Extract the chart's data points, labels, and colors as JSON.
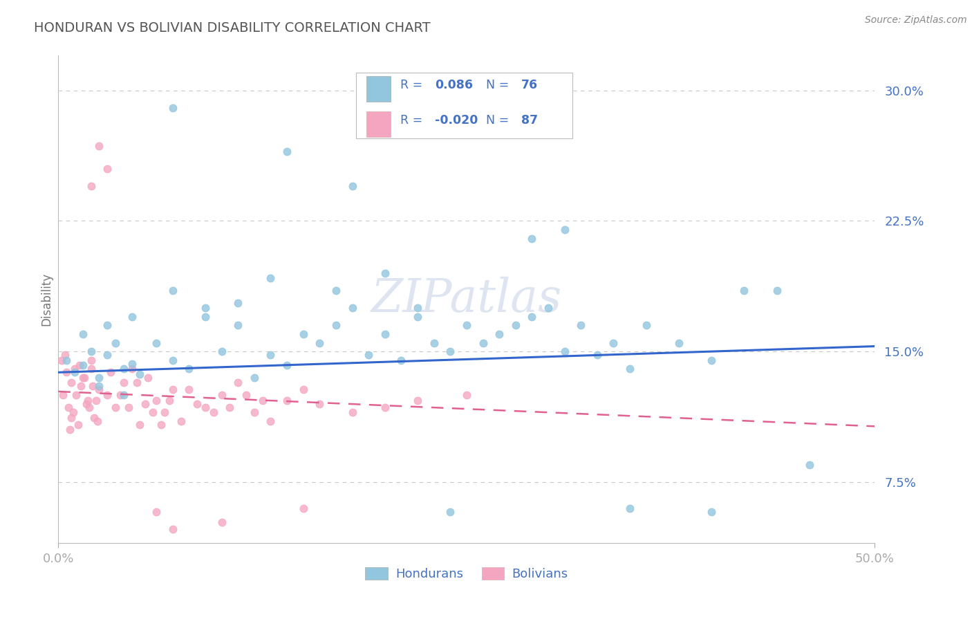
{
  "title": "HONDURAN VS BOLIVIAN DISABILITY CORRELATION CHART",
  "source": "Source: ZipAtlas.com",
  "ylabel": "Disability",
  "y_ticks": [
    0.075,
    0.15,
    0.225,
    0.3
  ],
  "y_tick_labels": [
    "7.5%",
    "15.0%",
    "22.5%",
    "30.0%"
  ],
  "xlim": [
    0.0,
    0.5
  ],
  "ylim": [
    0.04,
    0.32
  ],
  "hondurans_R": 0.086,
  "hondurans_N": 76,
  "bolivians_R": -0.02,
  "bolivians_N": 87,
  "blue_color": "#92c5de",
  "blue_line_color": "#3366cc",
  "pink_color": "#f4a6c0",
  "pink_line_color": "#e06090",
  "legend_text_color": "#4472C4",
  "background_color": "#ffffff",
  "grid_color": "#c8c8c8",
  "title_color": "#555555",
  "tick_color": "#4472C4",
  "ylabel_color": "#777777",
  "watermark_color": "#c8d4e8",
  "source_color": "#888888"
}
